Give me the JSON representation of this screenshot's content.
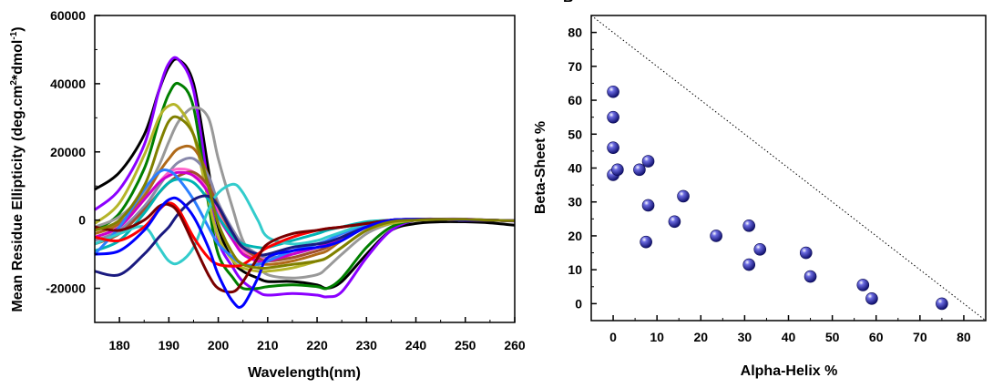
{
  "chart_data": [
    {
      "type": "line",
      "title": "",
      "xlabel": "Wavelength(nm)",
      "ylabel": "Mean Residue Ellipticity (deg.cm²*dmol⁻¹)",
      "ylabel_parts": [
        "Mean Residue Ellipticity  (deg.cm",
        "2",
        "*dmol",
        "-1",
        ")"
      ],
      "xlim": [
        175,
        260
      ],
      "ylim": [
        -30000,
        60000
      ],
      "xticks": [
        "180",
        "190",
        "200",
        "210",
        "220",
        "230",
        "240",
        "250",
        "260"
      ],
      "yticks": [
        "-20000",
        "0",
        "20000",
        "40000",
        "60000"
      ],
      "grid": false,
      "x": [
        175,
        180,
        185,
        188,
        190,
        192,
        195,
        198,
        200,
        203,
        205,
        208,
        210,
        215,
        220,
        222,
        225,
        230,
        235,
        240,
        245,
        250,
        255,
        260
      ],
      "series": [
        {
          "color": "#000000",
          "values": [
            9000,
            14000,
            25000,
            38000,
            45000,
            47000,
            40000,
            15000,
            -2000,
            -12000,
            -15000,
            -17000,
            -18000,
            -18000,
            -19000,
            -20000,
            -18000,
            -10000,
            -3000,
            -1000,
            -500,
            -500,
            -800,
            -1500
          ]
        },
        {
          "color": "#8b00ff",
          "values": [
            3000,
            9000,
            22000,
            38000,
            46000,
            47000,
            38000,
            10000,
            -6000,
            -14000,
            -18000,
            -21000,
            -22000,
            -21500,
            -22000,
            -22500,
            -21000,
            -11000,
            -3000,
            0,
            300,
            300,
            0,
            -300
          ]
        },
        {
          "color": "#007f00",
          "values": [
            -3000,
            2000,
            15000,
            29000,
            37000,
            40000,
            33000,
            5000,
            -10000,
            -17000,
            -20000,
            -20000,
            -19500,
            -19000,
            -19500,
            -20000,
            -17000,
            -8000,
            -2000,
            0,
            200,
            200,
            0,
            -200
          ]
        },
        {
          "color": "#999999",
          "values": [
            -2000,
            1000,
            8000,
            16000,
            23000,
            29000,
            33000,
            30000,
            18000,
            3000,
            -6000,
            -13000,
            -16000,
            -17000,
            -16000,
            -14000,
            -10000,
            -4000,
            -1000,
            0,
            200,
            200,
            0,
            -200
          ]
        },
        {
          "color": "#b5b52a",
          "values": [
            -1000,
            5000,
            19000,
            30000,
            33500,
            33000,
            25000,
            6000,
            -5000,
            -12000,
            -14000,
            -15000,
            -15000,
            -14000,
            -12000,
            -11000,
            -8000,
            -3000,
            -1000,
            0,
            200,
            200,
            0,
            -200
          ]
        },
        {
          "color": "#b06a1a",
          "values": [
            -4000,
            -1000,
            7000,
            14000,
            18000,
            21000,
            21000,
            13000,
            3000,
            -5000,
            -9000,
            -12000,
            -13000,
            -12000,
            -10000,
            -9000,
            -6000,
            -2000,
            0,
            200,
            200,
            0,
            0,
            -200
          ]
        },
        {
          "color": "#8888aa",
          "values": [
            -6000,
            -3000,
            4000,
            10000,
            14000,
            17000,
            18000,
            13000,
            5000,
            -3000,
            -7000,
            -10000,
            -11000,
            -10000,
            -8000,
            -7000,
            -5000,
            -2000,
            0,
            200,
            200,
            0,
            0,
            -200
          ]
        },
        {
          "color": "#ff66cc",
          "values": [
            -5000,
            -2000,
            6000,
            11000,
            14000,
            15000,
            14000,
            9000,
            2000,
            -6000,
            -9000,
            -11000,
            -11500,
            -11000,
            -9000,
            -8000,
            -5500,
            -2000,
            0,
            200,
            200,
            0,
            0,
            -200
          ]
        },
        {
          "color": "#a0522d",
          "values": [
            -7000,
            -4000,
            3000,
            8000,
            11000,
            13000,
            14000,
            10000,
            4000,
            -4000,
            -8000,
            -11000,
            -12000,
            -11000,
            -9000,
            -8000,
            -5000,
            -2000,
            0,
            200,
            200,
            0,
            0,
            -200
          ]
        },
        {
          "color": "#cc00cc",
          "values": [
            -5000,
            -2000,
            6000,
            11000,
            13000,
            14000,
            13000,
            8000,
            1000,
            -6000,
            -10000,
            -12000,
            -12000,
            -10000,
            -8000,
            -7000,
            -5000,
            -2000,
            0,
            200,
            200,
            0,
            0,
            -200
          ]
        },
        {
          "color": "#00b3b3",
          "values": [
            -9000,
            -6000,
            2000,
            8000,
            11000,
            12000,
            11000,
            6000,
            1000,
            -5000,
            -7000,
            -8000,
            -8000,
            -6000,
            -4000,
            -3000,
            -2000,
            -500,
            0,
            200,
            200,
            0,
            0,
            -200
          ]
        },
        {
          "color": "#2b7fff",
          "values": [
            -10000,
            -2000,
            9000,
            14000,
            14500,
            12000,
            6000,
            -2000,
            -7000,
            -11000,
            -13000,
            -13000,
            -12000,
            -9000,
            -7000,
            -6000,
            -4000,
            -1500,
            0,
            200,
            200,
            0,
            0,
            -200
          ]
        },
        {
          "color": "#33cccc",
          "values": [
            -7000,
            -4000,
            -2000,
            -8000,
            -12000,
            -12500,
            -8000,
            3000,
            8000,
            10500,
            8000,
            0,
            -5000,
            -7000,
            -6000,
            -5000,
            -3500,
            -1000,
            0,
            200,
            200,
            0,
            0,
            -200
          ]
        },
        {
          "color": "#1a1a80",
          "values": [
            -15000,
            -16000,
            -10000,
            -5000,
            -2000,
            2000,
            6000,
            7000,
            4000,
            -4000,
            -8000,
            -10000,
            -10000,
            -8000,
            -7000,
            -6500,
            -5000,
            -2000,
            0,
            200,
            200,
            0,
            0,
            -200
          ]
        },
        {
          "color": "#ff0000",
          "values": [
            -5000,
            -6000,
            -2000,
            3000,
            5000,
            3000,
            -5000,
            -11000,
            -13000,
            -13500,
            -13000,
            -10000,
            -8000,
            -5000,
            -3000,
            -2500,
            -2000,
            -1000,
            0,
            200,
            200,
            0,
            0,
            -200
          ]
        },
        {
          "color": "#7a0000",
          "values": [
            -2000,
            -3000,
            0,
            4000,
            4500,
            2000,
            -7000,
            -16000,
            -20000,
            -21000,
            -18000,
            -11000,
            -7000,
            -4000,
            -3000,
            -2500,
            -2000,
            -1000,
            0,
            200,
            200,
            0,
            0,
            -200
          ]
        },
        {
          "color": "#0000ff",
          "values": [
            -10000,
            -9000,
            -3000,
            3000,
            6000,
            6000,
            1000,
            -8000,
            -16000,
            -24000,
            -25000,
            -17000,
            -11000,
            -9000,
            -8000,
            -7500,
            -6000,
            -2000,
            0,
            200,
            200,
            0,
            0,
            -200
          ]
        },
        {
          "color": "#808000",
          "values": [
            -3000,
            0,
            10000,
            22000,
            29000,
            30000,
            25000,
            10000,
            -1000,
            -10000,
            -13000,
            -14000,
            -14000,
            -13000,
            -12000,
            -11000,
            -8000,
            -3000,
            -500,
            0,
            200,
            200,
            0,
            -200
          ]
        }
      ]
    },
    {
      "type": "scatter",
      "title": "",
      "panel_label": "B",
      "xlabel": "Alpha-Helix %",
      "ylabel": "Beta-Sheet %",
      "xlim": [
        -5,
        85
      ],
      "ylim": [
        -5,
        85
      ],
      "xticks": [
        "0",
        "10",
        "20",
        "30",
        "40",
        "50",
        "60",
        "70",
        "80"
      ],
      "yticks": [
        "0",
        "10",
        "20",
        "30",
        "40",
        "50",
        "60",
        "70",
        "80"
      ],
      "grid": false,
      "reference_line": {
        "style": "dotted",
        "from": [
          -5,
          85
        ],
        "to": [
          85,
          -5
        ]
      },
      "marker_color": "#1f1fa8",
      "points": [
        [
          0,
          62.5
        ],
        [
          0,
          55
        ],
        [
          0,
          46
        ],
        [
          0,
          38
        ],
        [
          1,
          39.5
        ],
        [
          6,
          39.5
        ],
        [
          8,
          42
        ],
        [
          8,
          29
        ],
        [
          7.5,
          18.2
        ],
        [
          14,
          24.2
        ],
        [
          16,
          31.7
        ],
        [
          23.5,
          20
        ],
        [
          31,
          23
        ],
        [
          33.5,
          16
        ],
        [
          31,
          11.5
        ],
        [
          44,
          15
        ],
        [
          45,
          8
        ],
        [
          57,
          5.5
        ],
        [
          59,
          1.5
        ],
        [
          75,
          0
        ]
      ]
    }
  ]
}
